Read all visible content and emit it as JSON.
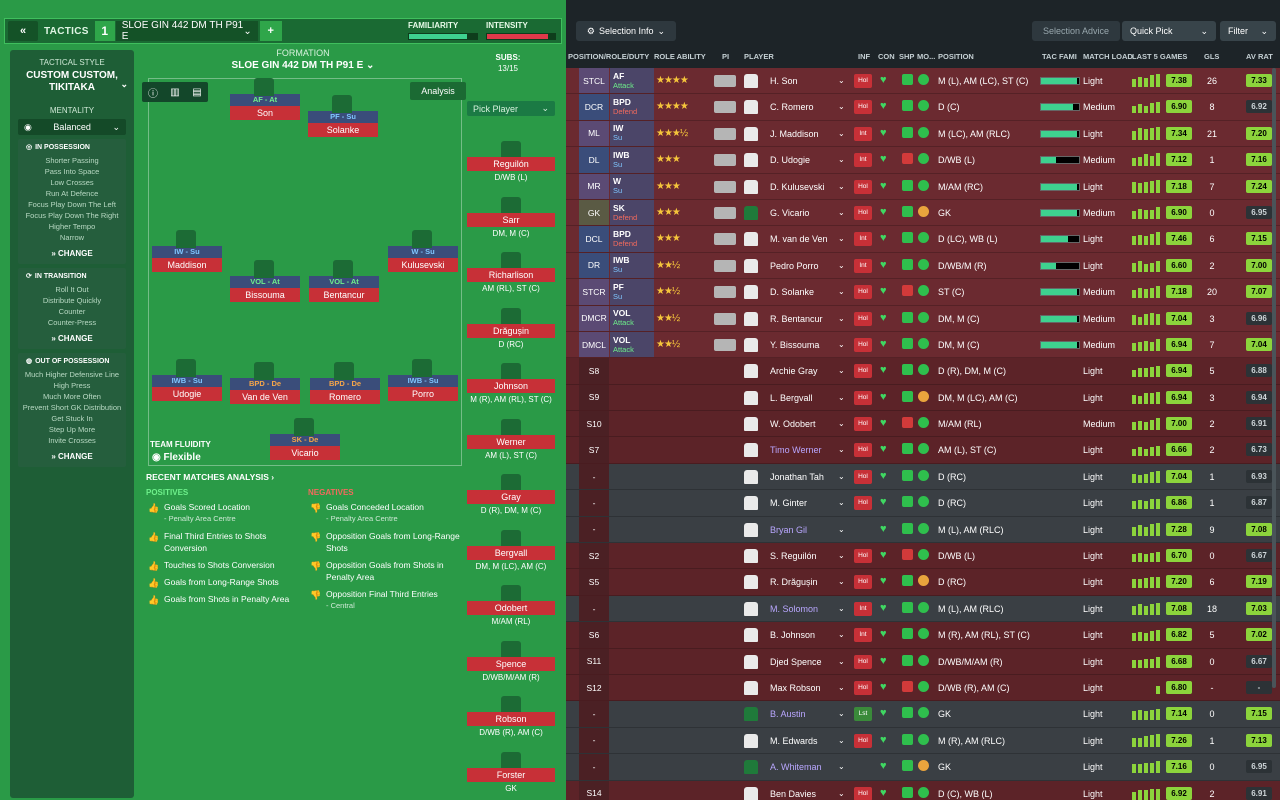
{
  "header": {
    "back_icon": "double-chevron-left-icon",
    "tactics_label": "TACTICS",
    "slot": "1",
    "tactic_name": "SLOE GIN 442 DM TH P91 E",
    "add": "+",
    "familiarity_label": "FAMILIARITY",
    "intensity_label": "INTENSITY",
    "familiarity": 0.85,
    "intensity": 0.9
  },
  "sidebar": {
    "style_head": "TACTICAL STYLE",
    "style_title": "CUSTOM CUSTOM, TIKITAKA",
    "mentality_head": "MENTALITY",
    "mentality_value": "Balanced",
    "in_possession": {
      "title": "IN POSSESSION",
      "items": [
        "Shorter Passing",
        "Pass Into Space",
        "Low Crosses",
        "Run At Defence",
        "Focus Play Down The Left",
        "Focus Play Down The Right",
        "Higher Tempo",
        "Narrow"
      ],
      "change": "CHANGE"
    },
    "in_transition": {
      "title": "IN TRANSITION",
      "items": [
        "Roll It Out",
        "Distribute Quickly",
        "Counter",
        "Counter-Press"
      ],
      "change": "CHANGE"
    },
    "out_of_possession": {
      "title": "OUT OF POSSESSION",
      "items": [
        "Much Higher Defensive Line",
        "High Press",
        "Much More Often",
        "Prevent Short GK Distribution",
        "Get Stuck In",
        "Step Up More",
        "Invite Crosses"
      ],
      "change": "CHANGE"
    }
  },
  "pitch": {
    "formation_label": "FORMATION",
    "formation_name": "SLOE GIN 442 DM TH P91 E",
    "analysis": "Analysis",
    "positions": [
      {
        "role": "AF - At",
        "name": "Son",
        "duty": "att"
      },
      {
        "role": "PF - Su",
        "name": "Solanke",
        "duty": "sup"
      },
      {
        "role": "IW - Su",
        "name": "Maddison",
        "duty": "sup"
      },
      {
        "role": "W - Su",
        "name": "Kulusevski",
        "duty": "sup"
      },
      {
        "role": "VOL - At",
        "name": "Bissouma",
        "duty": "att"
      },
      {
        "role": "VOL - At",
        "name": "Bentancur",
        "duty": "att"
      },
      {
        "role": "IWB - Su",
        "name": "Udogie",
        "duty": "sup"
      },
      {
        "role": "BPD - De",
        "name": "Van de Ven",
        "duty": "def"
      },
      {
        "role": "BPD - De",
        "name": "Romero",
        "duty": "def"
      },
      {
        "role": "IWB - Su",
        "name": "Porro",
        "duty": "sup"
      },
      {
        "role": "SK - De",
        "name": "Vicario",
        "duty": "def"
      }
    ],
    "fluidity_label": "TEAM FLUIDITY",
    "fluidity_value": "Flexible"
  },
  "recent": {
    "title": "RECENT MATCHES ANALYSIS ›",
    "positives_head": "POSITIVES",
    "negatives_head": "NEGATIVES",
    "positives": [
      "Goals Scored Location",
      "Final Third Entries to Shots Conversion",
      "Touches to Shots Conversion",
      "Goals from Long-Range Shots",
      "Goals from Shots in Penalty Area"
    ],
    "positives_sub": [
      "- Penalty Area Centre",
      "",
      "",
      "",
      ""
    ],
    "negatives": [
      "Goals Conceded Location",
      "Opposition Goals from Long-Range Shots",
      "Opposition Goals from Shots in Penalty Area",
      "Opposition Final Third Entries"
    ],
    "negatives_sub": [
      "- Penalty Area Centre",
      "",
      "",
      "- Central"
    ]
  },
  "subs": {
    "label": "SUBS:",
    "count": "13/15",
    "pick": "Pick Player",
    "players": [
      {
        "name": "Reguilón",
        "pos": "D/WB (L)"
      },
      {
        "name": "Sarr",
        "pos": "DM, M (C)"
      },
      {
        "name": "Richarlison",
        "pos": "AM (RL), ST (C)"
      },
      {
        "name": "Drăgușin",
        "pos": "D (RC)"
      },
      {
        "name": "Johnson",
        "pos": "M (R), AM (RL), ST (C)"
      },
      {
        "name": "Werner",
        "pos": "AM (L), ST (C)"
      },
      {
        "name": "Gray",
        "pos": "D (R), DM, M (C)"
      },
      {
        "name": "Bergvall",
        "pos": "DM, M (LC), AM (C)"
      },
      {
        "name": "Odobert",
        "pos": "M/AM (RL)"
      },
      {
        "name": "Spence",
        "pos": "D/WB/M/AM (R)"
      },
      {
        "name": "Robson",
        "pos": "D/WB (R), AM (C)"
      },
      {
        "name": "Forster",
        "pos": "GK"
      }
    ]
  },
  "table": {
    "selection_info": "Selection Info",
    "selection_advice": "Selection Advice",
    "quick_pick": "Quick Pick",
    "filter": "Filter",
    "headers": {
      "pos": "POSITION/ROLE/DUTY",
      "ability": "ROLE ABILITY",
      "pi": "PI",
      "player": "PLAYER",
      "inf": "INF",
      "con": "CON",
      "shp": "SHP",
      "mo": "MO...",
      "position": "POSITION",
      "fam": "TAC FAMI",
      "load": "MATCH LOAD",
      "last5": "LAST 5 GAMES",
      "gls": "GLS",
      "av": "AV RAT"
    },
    "rows": [
      {
        "pos": "STCL",
        "role": "AF",
        "duty": "Attack",
        "dclass": "att",
        "stars": "★★★★",
        "name": "H. Son",
        "inf": "Hol",
        "position": "M (L), AM (LC), ST (C)",
        "fam": 0.95,
        "load": "Light",
        "last": "7.38",
        "gls": "26",
        "av": "7.33",
        "kind": "starter",
        "pc": "st",
        "form": [
          6,
          8,
          7,
          9,
          10
        ]
      },
      {
        "pos": "DCR",
        "role": "BPD",
        "duty": "Defend",
        "dclass": "def",
        "stars": "★★★★",
        "name": "C. Romero",
        "inf": "Hol",
        "position": "D (C)",
        "fam": 0.85,
        "load": "Medium",
        "last": "6.90",
        "gls": "8",
        "av": "6.92",
        "kind": "starter",
        "pc": "def",
        "form": [
          6,
          7,
          6,
          8,
          9
        ]
      },
      {
        "pos": "ML",
        "role": "IW",
        "duty": "Su",
        "dclass": "sup",
        "stars": "★★★½",
        "name": "J. Maddison",
        "inf": "Int",
        "position": "M (LC), AM (RLC)",
        "fam": 0.95,
        "load": "Light",
        "last": "7.34",
        "gls": "21",
        "av": "7.20",
        "kind": "starter",
        "pc": "st",
        "form": [
          7,
          9,
          8,
          9,
          10
        ]
      },
      {
        "pos": "DL",
        "role": "IWB",
        "duty": "Su",
        "dclass": "sup",
        "stars": "★★★",
        "name": "D. Udogie",
        "inf": "Int",
        "position": "D/WB (L)",
        "fam": 0.4,
        "load": "Medium",
        "last": "7.12",
        "gls": "1",
        "av": "7.16",
        "kind": "starter",
        "pc": "def",
        "form": [
          6,
          7,
          9,
          8,
          10
        ]
      },
      {
        "pos": "MR",
        "role": "W",
        "duty": "Su",
        "dclass": "sup",
        "stars": "★★★",
        "name": "D. Kulusevski",
        "inf": "Hol",
        "position": "M/AM (RC)",
        "fam": 0.95,
        "load": "Light",
        "last": "7.18",
        "gls": "7",
        "av": "7.24",
        "kind": "starter",
        "pc": "st",
        "form": [
          8,
          7,
          8,
          9,
          10
        ]
      },
      {
        "pos": "GK",
        "role": "SK",
        "duty": "Defend",
        "dclass": "def",
        "stars": "★★★",
        "name": "G. Vicario",
        "inf": "Hol",
        "position": "GK",
        "fam": 0.95,
        "load": "Medium",
        "last": "6.90",
        "gls": "0",
        "av": "6.95",
        "kind": "starter",
        "pc": "gk",
        "form": [
          6,
          8,
          7,
          7,
          9
        ],
        "gkshirt": true
      },
      {
        "pos": "DCL",
        "role": "BPD",
        "duty": "Defend",
        "dclass": "def",
        "stars": "★★★",
        "name": "M. van de Ven",
        "inf": "Int",
        "position": "D (LC), WB (L)",
        "fam": 0.7,
        "load": "Light",
        "last": "7.46",
        "gls": "6",
        "av": "7.15",
        "kind": "starter",
        "pc": "def",
        "form": [
          7,
          8,
          7,
          9,
          10
        ]
      },
      {
        "pos": "DR",
        "role": "IWB",
        "duty": "Su",
        "dclass": "sup",
        "stars": "★★½",
        "name": "Pedro Porro",
        "inf": "Int",
        "position": "D/WB/M (R)",
        "fam": 0.4,
        "load": "Light",
        "last": "6.60",
        "gls": "2",
        "av": "7.00",
        "kind": "starter",
        "pc": "def",
        "form": [
          7,
          8,
          6,
          7,
          8
        ]
      },
      {
        "pos": "STCR",
        "role": "PF",
        "duty": "Su",
        "dclass": "sup",
        "stars": "★★½",
        "name": "D. Solanke",
        "inf": "Hol",
        "position": "ST (C)",
        "fam": 0.95,
        "load": "Medium",
        "last": "7.18",
        "gls": "20",
        "av": "7.07",
        "kind": "starter",
        "pc": "st",
        "form": [
          6,
          8,
          7,
          8,
          9
        ]
      },
      {
        "pos": "DMCR",
        "role": "VOL",
        "duty": "Attack",
        "dclass": "att",
        "stars": "★★½",
        "name": "R. Bentancur",
        "inf": "Hol",
        "position": "DM, M (C)",
        "fam": 0.95,
        "load": "Medium",
        "last": "7.04",
        "gls": "3",
        "av": "6.96",
        "kind": "starter",
        "pc": "mid",
        "form": [
          7,
          6,
          8,
          9,
          8
        ]
      },
      {
        "pos": "DMCL",
        "role": "VOL",
        "duty": "Attack",
        "dclass": "att",
        "stars": "★★½",
        "name": "Y. Bissouma",
        "inf": "Hol",
        "position": "DM, M (C)",
        "fam": 0.95,
        "load": "Medium",
        "last": "6.94",
        "gls": "7",
        "av": "7.04",
        "kind": "starter",
        "pc": "mid",
        "form": [
          6,
          7,
          8,
          7,
          9
        ]
      },
      {
        "pos": "S8",
        "name": "Archie Gray",
        "inf": "Hol",
        "position": "D (R), DM, M (C)",
        "load": "Light",
        "last": "6.94",
        "gls": "5",
        "av": "6.88",
        "kind": "sub",
        "form": [
          6,
          7,
          7,
          8,
          9
        ]
      },
      {
        "pos": "S9",
        "name": "L. Bergvall",
        "inf": "Hol",
        "position": "DM, M (LC), AM (C)",
        "load": "Light",
        "last": "6.94",
        "gls": "3",
        "av": "6.94",
        "kind": "sub",
        "form": [
          7,
          6,
          8,
          8,
          9
        ]
      },
      {
        "pos": "S10",
        "name": "W. Odobert",
        "inf": "Hol",
        "position": "M/AM (RL)",
        "load": "Medium",
        "last": "7.00",
        "gls": "2",
        "av": "6.91",
        "kind": "sub",
        "form": [
          6,
          7,
          6,
          8,
          9
        ]
      },
      {
        "pos": "S7",
        "name": "Timo Werner",
        "inf": "Hol",
        "position": "AM (L), ST (C)",
        "load": "Light",
        "last": "6.66",
        "gls": "2",
        "av": "6.73",
        "kind": "sub",
        "link": true,
        "form": [
          6,
          7,
          6,
          7,
          8
        ]
      },
      {
        "pos": "-",
        "name": "Jonathan Tah",
        "inf": "Hol",
        "position": "D (RC)",
        "load": "Light",
        "last": "7.04",
        "gls": "1",
        "av": "6.93",
        "kind": "res",
        "form": [
          7,
          6,
          7,
          8,
          9
        ]
      },
      {
        "pos": "-",
        "name": "M. Ginter",
        "inf": "Hol",
        "position": "D (RC)",
        "load": "Light",
        "last": "6.86",
        "gls": "1",
        "av": "6.87",
        "kind": "res",
        "form": [
          6,
          7,
          6,
          8,
          8
        ]
      },
      {
        "pos": "-",
        "name": "Bryan Gil",
        "inf": "",
        "position": "M (L), AM (RLC)",
        "load": "Light",
        "last": "7.28",
        "gls": "9",
        "av": "7.08",
        "kind": "res",
        "link": true,
        "form": [
          7,
          8,
          7,
          9,
          10
        ]
      },
      {
        "pos": "S2",
        "name": "S. Reguilón",
        "inf": "Hol",
        "position": "D/WB (L)",
        "load": "Light",
        "last": "6.70",
        "gls": "0",
        "av": "6.67",
        "kind": "sub",
        "form": [
          6,
          7,
          6,
          7,
          8
        ]
      },
      {
        "pos": "S5",
        "name": "R. Drăgușin",
        "inf": "Hol",
        "position": "D (RC)",
        "load": "Light",
        "last": "7.20",
        "gls": "6",
        "av": "7.19",
        "kind": "sub",
        "form": [
          7,
          7,
          8,
          9,
          9
        ]
      },
      {
        "pos": "-",
        "name": "M. Solomon",
        "inf": "Int",
        "position": "M (L), AM (RLC)",
        "load": "Light",
        "last": "7.08",
        "gls": "18",
        "av": "7.03",
        "kind": "res",
        "link": true,
        "form": [
          7,
          8,
          7,
          8,
          9
        ]
      },
      {
        "pos": "S6",
        "name": "B. Johnson",
        "inf": "Int",
        "position": "M (R), AM (RL), ST (C)",
        "load": "Light",
        "last": "6.82",
        "gls": "5",
        "av": "7.02",
        "kind": "sub",
        "form": [
          6,
          7,
          6,
          8,
          9
        ]
      },
      {
        "pos": "S11",
        "name": "Djed Spence",
        "inf": "Hol",
        "position": "D/WB/M/AM (R)",
        "load": "Light",
        "last": "6.68",
        "gls": "0",
        "av": "6.67",
        "kind": "sub",
        "form": [
          6,
          6,
          7,
          7,
          8
        ]
      },
      {
        "pos": "S12",
        "name": "Max Robson",
        "inf": "Hol",
        "position": "D/WB (R), AM (C)",
        "load": "Light",
        "last": "6.80",
        "gls": "-",
        "av": "-",
        "kind": "sub",
        "form": [
          0,
          0,
          0,
          0,
          6
        ]
      },
      {
        "pos": "-",
        "name": "B. Austin",
        "inf": "Lst",
        "position": "GK",
        "load": "Light",
        "last": "7.14",
        "gls": "0",
        "av": "7.15",
        "kind": "res",
        "link": true,
        "gkshirt": true,
        "form": [
          7,
          8,
          7,
          8,
          9
        ]
      },
      {
        "pos": "-",
        "name": "M. Edwards",
        "inf": "Hol",
        "position": "M (R), AM (RLC)",
        "load": "Light",
        "last": "7.26",
        "gls": "1",
        "av": "7.13",
        "kind": "res",
        "form": [
          7,
          7,
          8,
          9,
          10
        ]
      },
      {
        "pos": "-",
        "name": "A. Whiteman",
        "inf": "",
        "position": "GK",
        "load": "Light",
        "last": "7.16",
        "gls": "0",
        "av": "6.95",
        "kind": "res",
        "link": true,
        "gkshirt": true,
        "form": [
          7,
          7,
          8,
          8,
          9
        ]
      },
      {
        "pos": "S14",
        "name": "Ben Davies",
        "inf": "Hol",
        "position": "D (C), WB (L)",
        "load": "Light",
        "last": "6.92",
        "gls": "2",
        "av": "6.91",
        "kind": "sub",
        "form": [
          6,
          7,
          7,
          8,
          8
        ]
      }
    ]
  }
}
